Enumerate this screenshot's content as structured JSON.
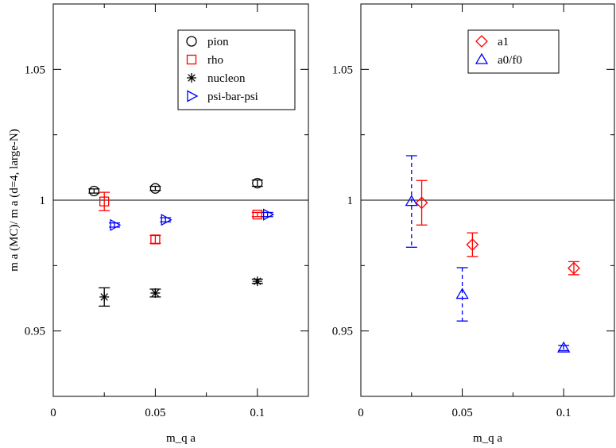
{
  "chart_data": [
    {
      "type": "scatter",
      "title": "",
      "xlabel": "m_q a",
      "ylabel": "m a (MC)/ m a (d=4, large-N)",
      "xlim": [
        0,
        0.125
      ],
      "ylim": [
        0.925,
        1.075
      ],
      "xticks": [
        0,
        0.05,
        0.1
      ],
      "xtick_labels": [
        "0",
        "0.05",
        "0.1"
      ],
      "yticks": [
        0.95,
        1.0,
        1.05
      ],
      "ytick_labels": [
        "0.95",
        "1",
        "1.05"
      ],
      "reference_line": 1.0,
      "legend_position": "top-right",
      "series": [
        {
          "name": "pion",
          "color": "#000000",
          "marker": "circle",
          "errorbar_style": "solid",
          "points": [
            {
              "x": 0.02,
              "y": 1.0035,
              "err": 0.0008
            },
            {
              "x": 0.05,
              "y": 1.0045,
              "err": 0.0008
            },
            {
              "x": 0.1,
              "y": 1.0065,
              "err": 0.0012
            }
          ]
        },
        {
          "name": "rho",
          "color": "#ff0000",
          "marker": "square",
          "errorbar_style": "solid",
          "points": [
            {
              "x": 0.025,
              "y": 0.9995,
              "err": 0.0035
            },
            {
              "x": 0.05,
              "y": 0.985,
              "err": 0.0015
            },
            {
              "x": 0.1,
              "y": 0.9945,
              "err": 0.0008
            }
          ]
        },
        {
          "name": "nucleon",
          "color": "#000000",
          "marker": "asterisk",
          "errorbar_style": "solid",
          "points": [
            {
              "x": 0.025,
              "y": 0.963,
              "err": 0.0035
            },
            {
              "x": 0.05,
              "y": 0.9645,
              "err": 0.0015
            },
            {
              "x": 0.1,
              "y": 0.969,
              "err": 0.0008
            }
          ]
        },
        {
          "name": "psi-bar-psi",
          "color": "#0000ff",
          "marker": "triangle-right",
          "errorbar_style": "solid",
          "points": [
            {
              "x": 0.03,
              "y": 0.9905,
              "err": 0.0008
            },
            {
              "x": 0.055,
              "y": 0.9925,
              "err": 0.0008
            },
            {
              "x": 0.105,
              "y": 0.9945,
              "err": 0.0008
            }
          ]
        }
      ]
    },
    {
      "type": "scatter",
      "title": "",
      "xlabel": "m_q a",
      "ylabel": "",
      "xlim": [
        0,
        0.125
      ],
      "ylim": [
        0.925,
        1.075
      ],
      "xticks": [
        0,
        0.05,
        0.1
      ],
      "xtick_labels": [
        "0",
        "0.05",
        "0.1"
      ],
      "yticks": [
        0.95,
        1.0,
        1.05
      ],
      "ytick_labels": [
        "0.95",
        "1",
        "1.05"
      ],
      "reference_line": 1.0,
      "legend_position": "top-right",
      "series": [
        {
          "name": "a1",
          "color": "#ff0000",
          "marker": "diamond",
          "errorbar_style": "solid",
          "points": [
            {
              "x": 0.03,
              "y": 0.999,
              "err": 0.0085
            },
            {
              "x": 0.055,
              "y": 0.983,
              "err": 0.0045
            },
            {
              "x": 0.105,
              "y": 0.974,
              "err": 0.0025
            }
          ]
        },
        {
          "name": "a0/f0",
          "color": "#0000ff",
          "marker": "triangle-up",
          "errorbar_style": "dashed",
          "points": [
            {
              "x": 0.025,
              "y": 0.9995,
              "err": 0.0175
            },
            {
              "x": 0.05,
              "y": 0.964,
              "err": 0.0102
            },
            {
              "x": 0.1,
              "y": 0.9435,
              "err": 0.001
            }
          ]
        }
      ]
    }
  ]
}
